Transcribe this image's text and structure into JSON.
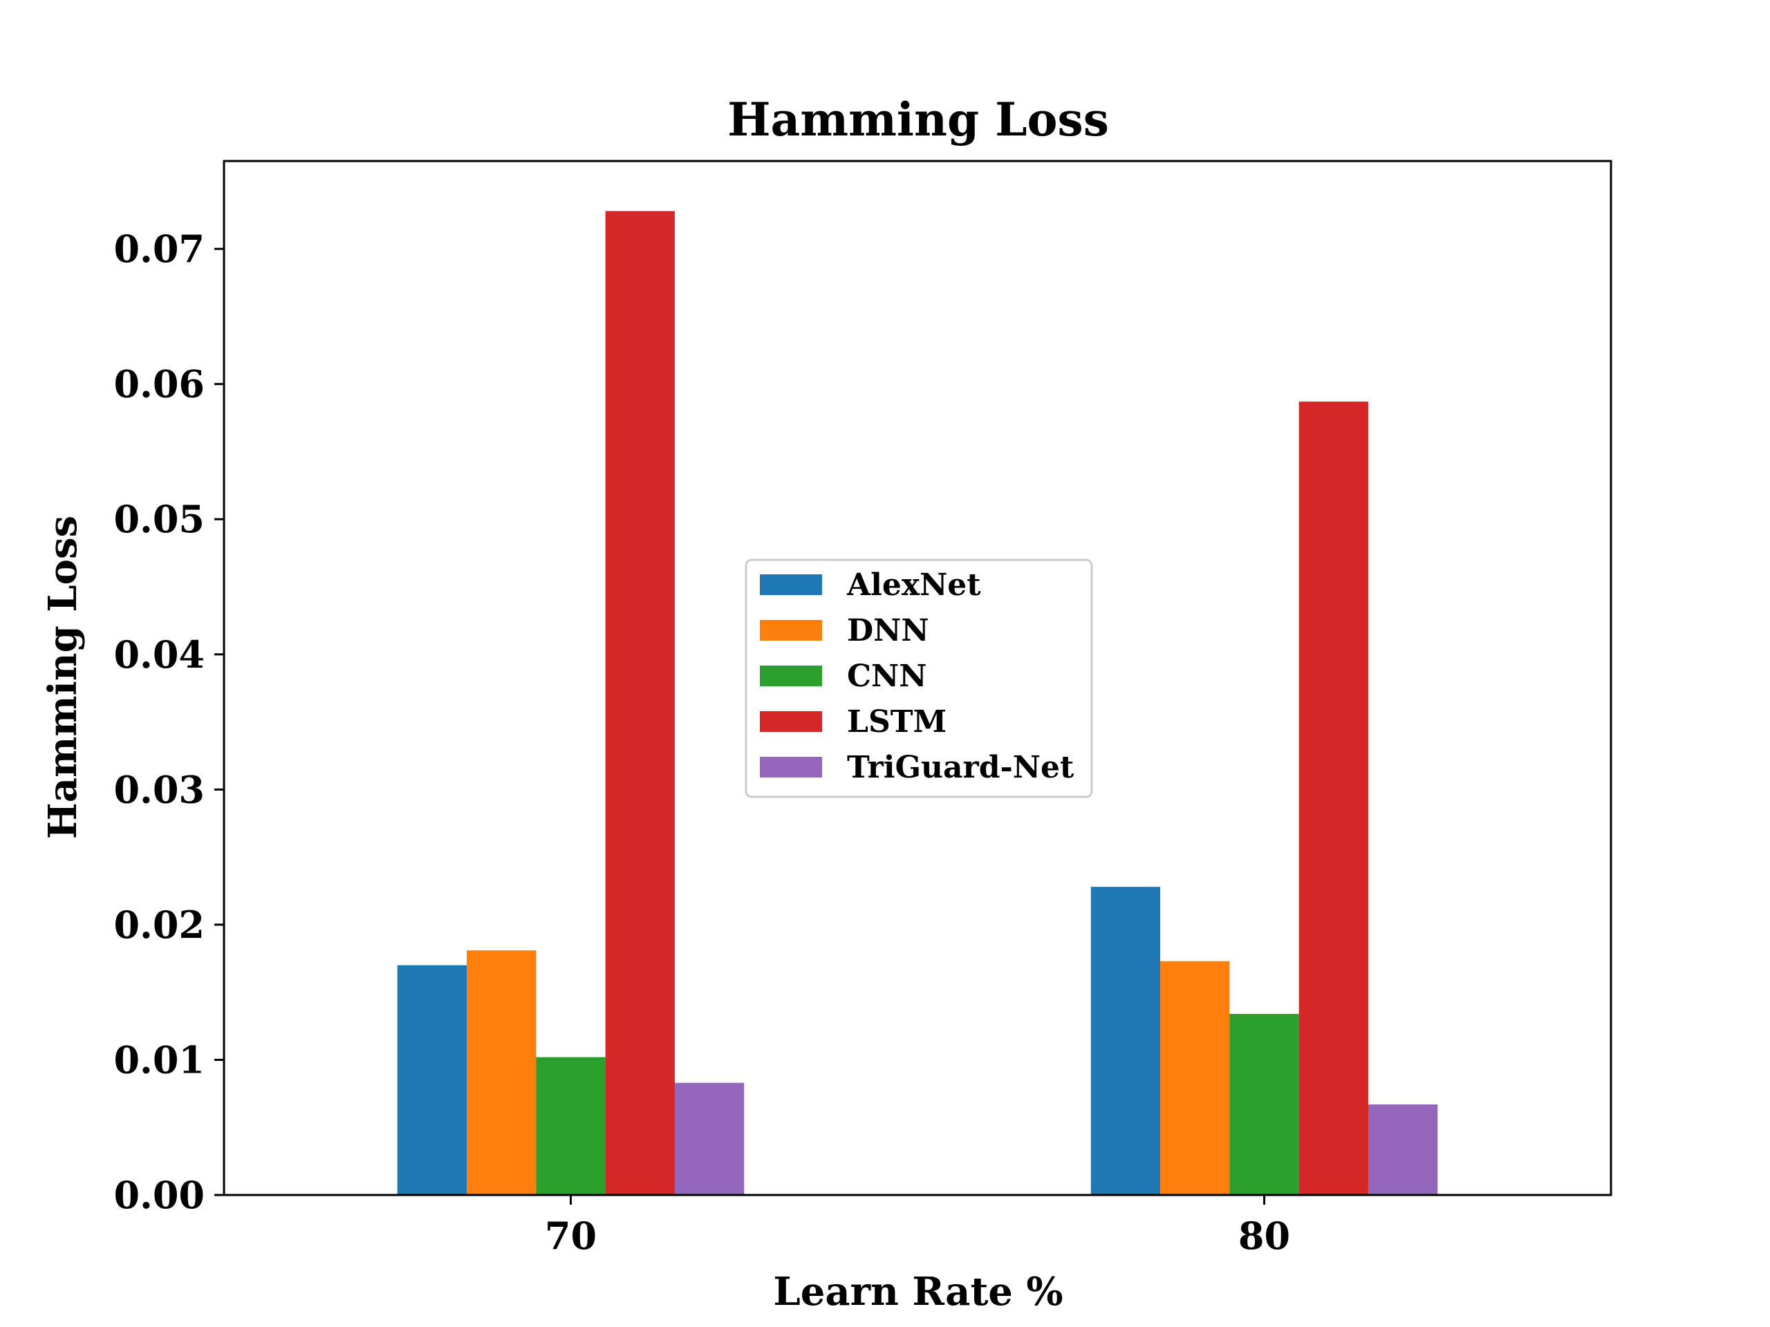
{
  "chart_data": {
    "type": "bar",
    "title": "Hamming Loss",
    "xlabel": "Learn Rate %",
    "ylabel": "Hamming Loss",
    "categories": [
      "70",
      "80"
    ],
    "ylim": [
      0,
      0.0765
    ],
    "yticks": [
      "0.00",
      "0.01",
      "0.02",
      "0.03",
      "0.04",
      "0.05",
      "0.06",
      "0.07"
    ],
    "grid": false,
    "legend_position": "center",
    "series": [
      {
        "name": "AlexNet",
        "color": "#1f77b4",
        "values": [
          0.017,
          0.0228
        ]
      },
      {
        "name": "DNN",
        "color": "#ff7f0e",
        "values": [
          0.0181,
          0.0173
        ]
      },
      {
        "name": "CNN",
        "color": "#2ca02c",
        "values": [
          0.0102,
          0.0134
        ]
      },
      {
        "name": "LSTM",
        "color": "#d62728",
        "values": [
          0.0728,
          0.0587
        ]
      },
      {
        "name": "TriGuard-Net",
        "color": "#9467bd",
        "values": [
          0.0083,
          0.0067
        ]
      }
    ]
  }
}
